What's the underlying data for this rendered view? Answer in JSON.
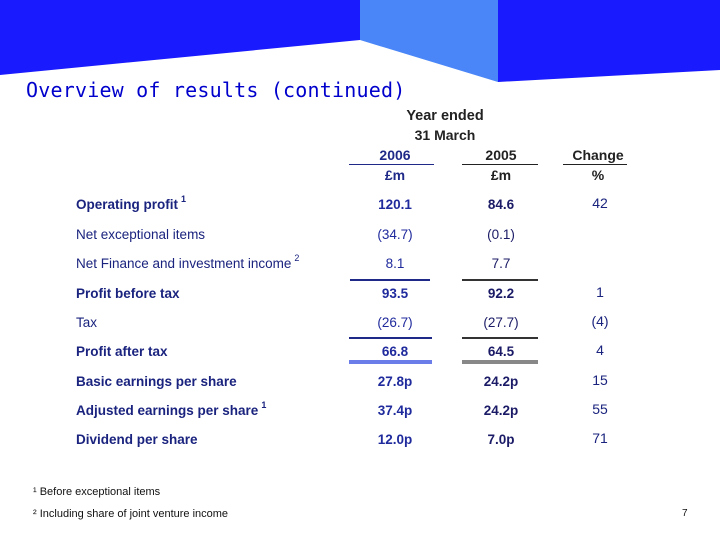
{
  "colors": {
    "banner_blue": "#1a1aff",
    "banner_light": "#4a86f7",
    "title": "#0000cc",
    "text_navy": "#1a237e"
  },
  "title": "Overview of results (continued)",
  "header": {
    "year_ended": "Year ended",
    "date": "31 March",
    "col_2006_year": "2006",
    "col_2006_unit": "£m",
    "col_2005_year": "2005",
    "col_2005_unit": "£m",
    "change": "Change",
    "change_unit": "%"
  },
  "rows": [
    {
      "label": "Operating profit",
      "note": "1",
      "v2006": "120.1",
      "v2005": "84.6",
      "change": "42"
    },
    {
      "label": "Net exceptional items",
      "note": "",
      "v2006": "(34.7)",
      "v2005": "(0.1)",
      "change": ""
    },
    {
      "label": "Net Finance and investment income",
      "note": "2",
      "v2006": "8.1",
      "v2005": "7.7",
      "change": ""
    },
    {
      "label": "Profit before tax",
      "note": "",
      "v2006": "93.5",
      "v2005": "92.2",
      "change": "1"
    },
    {
      "label": "Tax",
      "note": "",
      "v2006": "(26.7)",
      "v2005": "(27.7)",
      "change": "(4)"
    },
    {
      "label": "Profit after tax",
      "note": "",
      "v2006": "66.8",
      "v2005": "64.5",
      "change": "4"
    },
    {
      "label": "Basic earnings per share",
      "note": "",
      "v2006": "27.8p",
      "v2005": "24.2p",
      "change": "15"
    },
    {
      "label": "Adjusted earnings per share",
      "note": "1",
      "v2006": "37.4p",
      "v2005": "24.2p",
      "change": "55"
    },
    {
      "label": "Dividend per share",
      "note": "",
      "v2006": "12.0p",
      "v2005": "7.0p",
      "change": "71"
    }
  ],
  "footnotes": [
    "¹ Before exceptional items",
    "² Including share of joint venture income"
  ],
  "page_number": "7"
}
